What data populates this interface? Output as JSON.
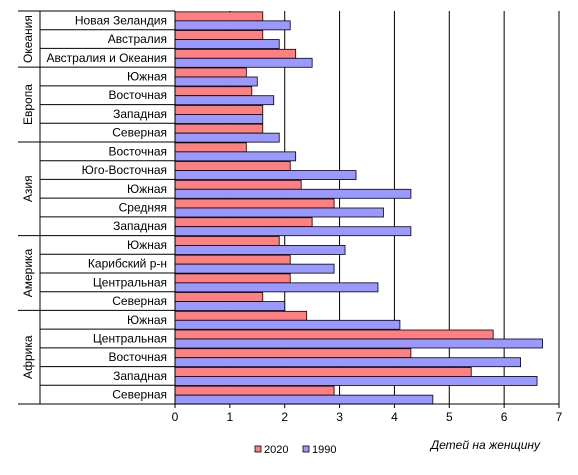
{
  "chart_data": {
    "type": "bar",
    "orientation": "horizontal",
    "title": "",
    "xlabel": "Детей на женщину",
    "ylabel": "",
    "xlim": [
      0,
      7
    ],
    "x_ticks": [
      "0",
      "1",
      "2",
      "3",
      "4",
      "5",
      "6",
      "7"
    ],
    "grid": "vertical",
    "legend_position": "bottom",
    "groups": [
      {
        "label": "Океания",
        "categories": [
          "Новая Зеландия",
          "Австралия",
          "Австралия и Океания"
        ]
      },
      {
        "label": "Европа",
        "categories": [
          "Южная",
          "Восточная",
          "Западная",
          "Северная"
        ]
      },
      {
        "label": "Азия",
        "categories": [
          "Восточная",
          "Юго-Восточная",
          "Южная",
          "Средняя",
          "Западная"
        ]
      },
      {
        "label": "Америка",
        "categories": [
          "Южная",
          "Карибский р-н",
          "Центральная",
          "Северная"
        ]
      },
      {
        "label": "Африка",
        "categories": [
          "Южная",
          "Центральная",
          "Восточная",
          "Западная",
          "Северная"
        ]
      }
    ],
    "categories": [
      "Новая Зеландия",
      "Австралия",
      "Австралия и Океания",
      "Южная",
      "Восточная",
      "Западная",
      "Северная",
      "Восточная",
      "Юго-Восточная",
      "Южная",
      "Средняя",
      "Западная",
      "Южная",
      "Карибский р-н",
      "Центральная",
      "Северная",
      "Южная",
      "Центральная",
      "Восточная",
      "Западная",
      "Северная"
    ],
    "series": [
      {
        "name": "2020",
        "color": "#ff8080",
        "values": [
          1.6,
          1.6,
          2.2,
          1.3,
          1.4,
          1.6,
          1.6,
          1.3,
          2.1,
          2.3,
          2.9,
          2.5,
          1.9,
          2.1,
          2.1,
          1.6,
          2.4,
          5.8,
          4.3,
          5.4,
          2.9
        ]
      },
      {
        "name": "1990",
        "color": "#9999ff",
        "values": [
          2.1,
          1.9,
          2.5,
          1.5,
          1.8,
          1.6,
          1.9,
          2.2,
          3.3,
          4.3,
          3.8,
          4.3,
          3.1,
          2.9,
          3.7,
          2.0,
          4.1,
          6.7,
          6.3,
          6.6,
          4.7
        ]
      }
    ]
  }
}
